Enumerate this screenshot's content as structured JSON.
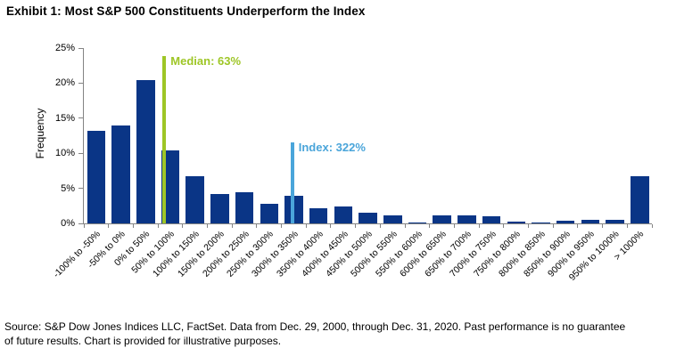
{
  "title": "Exhibit 1: Most S&P 500 Constituents Underperform the Index",
  "source": {
    "line1": "Source: S&P Dow Jones Indices LLC, FactSet. Data from Dec. 29, 2000, through Dec. 31, 2020. Past performance is no guarantee",
    "line2": "of future results. Chart is provided for illustrative purposes."
  },
  "colors": {
    "bar": "#0a3586",
    "median_green": "#9ec626",
    "index_blue": "#4aa5da",
    "axis": "#848484",
    "text": "#000000"
  },
  "chart_data": {
    "type": "bar",
    "title": "Exhibit 1: Most S&P 500 Constituents Underperform the Index",
    "xlabel": "",
    "ylabel": "Frequency",
    "ylim": [
      0,
      25
    ],
    "yticks": [
      0,
      5,
      10,
      15,
      20,
      25
    ],
    "ytick_suffix": "%",
    "grid": false,
    "legend": "none",
    "bin_width_percent": 50,
    "x_range_percent": [
      -100,
      1000
    ],
    "categories": [
      "-100% to -50%",
      "-50% to 0%",
      "0% to 50%",
      "50% to 100%",
      "100% to 150%",
      "150% to 200%",
      "200% to 250%",
      "250% to 300%",
      "300% to 350%",
      "350% to 400%",
      "400% to 450%",
      "450% to 500%",
      "500% to 550%",
      "550% to 600%",
      "600% to 650%",
      "650% to 700%",
      "700% to 750%",
      "750% to 800%",
      "800% to 850%",
      "850% to 900%",
      "900% to 950%",
      "950% to 1000%",
      "> 1000%"
    ],
    "values": [
      13.2,
      14.0,
      20.4,
      10.4,
      6.7,
      4.2,
      4.4,
      2.8,
      3.9,
      2.2,
      2.4,
      1.5,
      1.1,
      0.1,
      1.1,
      1.1,
      1.0,
      0.3,
      0.1,
      0.4,
      0.5,
      0.5,
      6.7
    ],
    "annotations": [
      {
        "name": "median",
        "label": "Median: 63%",
        "value_percent": 63,
        "line_top_frequency_percent": 23.9,
        "color": "#9ec626"
      },
      {
        "name": "index",
        "label": "Index: 322%",
        "value_percent": 322,
        "line_top_frequency_percent": 11.6,
        "color": "#4aa5da"
      }
    ]
  }
}
